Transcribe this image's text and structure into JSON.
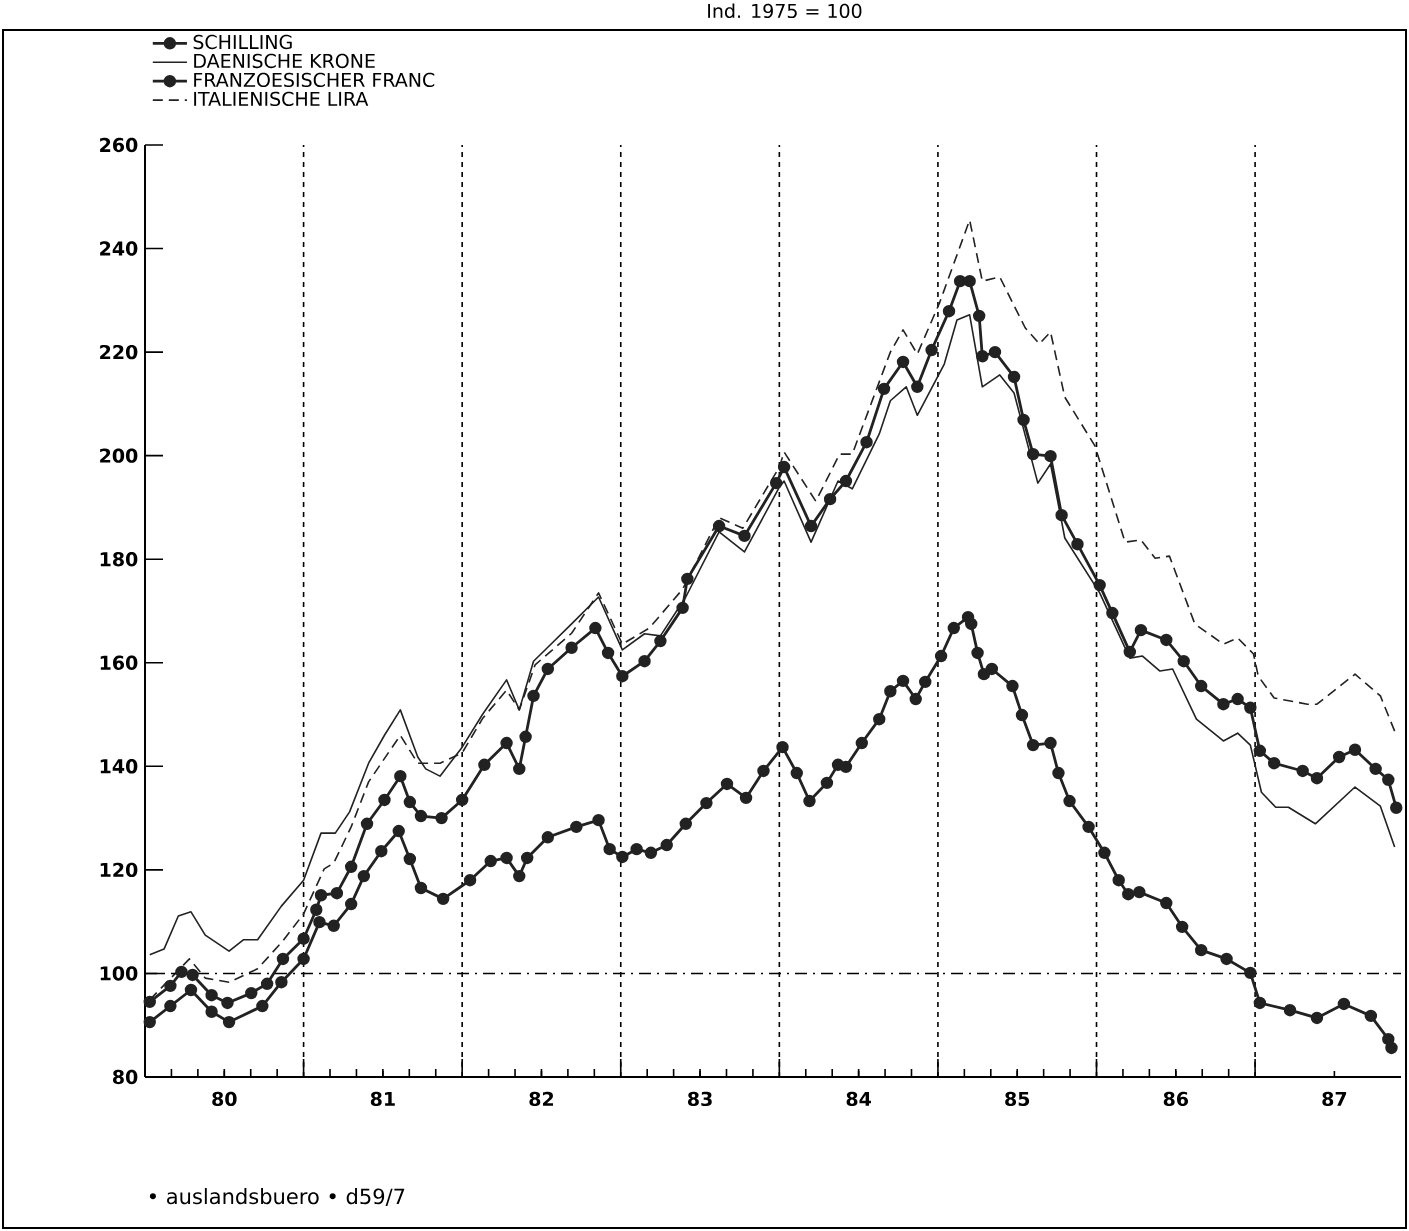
{
  "chart_data": {
    "type": "line",
    "title": "Ind. 1975 = 100",
    "annotations": [
      "• auslandsbuero • d59/7"
    ],
    "xlim": [
      79.5,
      87.42
    ],
    "ylim": [
      80,
      260
    ],
    "xticks": [
      {
        "value": 79.5,
        "label": null
      },
      80,
      {
        "value": 80.5,
        "label": null
      },
      81,
      {
        "value": 81.5,
        "label": null
      },
      82,
      {
        "value": 82.5,
        "label": null
      },
      83,
      {
        "value": 83.5,
        "label": null
      },
      84,
      {
        "value": 84.5,
        "label": null
      },
      85,
      {
        "value": 85.5,
        "label": null
      },
      86,
      {
        "value": 86.5,
        "label": null
      },
      87
    ],
    "yticks": [
      80,
      100,
      120,
      140,
      160,
      180,
      200,
      220,
      240,
      260
    ],
    "grid": "x",
    "legend": "top left",
    "ref_lines": [
      {
        "axis": "y",
        "value": 100,
        "line_style": "dashed"
      }
    ],
    "series": [
      {
        "name": "SCHILLING",
        "color": "#222222",
        "marker": "circle",
        "line_style": "solid",
        "x": [
          79.53,
          79.66,
          79.79,
          79.92,
          80.03,
          80.24,
          80.36,
          80.5,
          80.6,
          80.69,
          80.8,
          80.88,
          80.99,
          81.1,
          81.17,
          81.24,
          81.38,
          81.55,
          81.68,
          81.78,
          81.86,
          81.91,
          82.04,
          82.22,
          82.36,
          82.43,
          82.51,
          82.6,
          82.69,
          82.79,
          82.91,
          83.04,
          83.17,
          83.29,
          83.4,
          83.52,
          83.61,
          83.69,
          83.8,
          83.87,
          83.92,
          84.02,
          84.13,
          84.2,
          84.28,
          84.36,
          84.42,
          84.52,
          84.6,
          84.69,
          84.71,
          84.75,
          84.79,
          84.84,
          84.97,
          85.03,
          85.1,
          85.21,
          85.26,
          85.33,
          85.45,
          85.55,
          85.64,
          85.7,
          85.77,
          85.94,
          86.04,
          86.16,
          86.32,
          86.47,
          86.53,
          86.72,
          86.89,
          87.06,
          87.23,
          87.34,
          87.36
        ],
        "values": [
          90.6,
          93.7,
          96.8,
          92.6,
          90.6,
          93.7,
          98.3,
          102.8,
          109.9,
          109.2,
          113.4,
          118.8,
          123.6,
          127.5,
          122.1,
          116.5,
          114.4,
          118.0,
          121.7,
          122.3,
          118.8,
          122.3,
          126.3,
          128.3,
          129.6,
          124.0,
          122.5,
          124.0,
          123.3,
          124.8,
          128.9,
          132.9,
          136.6,
          133.9,
          139.1,
          143.7,
          138.7,
          133.3,
          136.8,
          140.3,
          139.9,
          144.5,
          149.1,
          154.5,
          156.5,
          153.0,
          156.3,
          161.3,
          166.7,
          168.8,
          167.5,
          161.9,
          157.8,
          158.8,
          155.5,
          149.9,
          144.1,
          144.5,
          138.7,
          133.3,
          128.3,
          123.3,
          118.0,
          115.3,
          115.7,
          113.6,
          109.0,
          104.5,
          102.8,
          100.1,
          94.3,
          92.9,
          91.4,
          94.1,
          91.8,
          87.3,
          85.6
        ]
      },
      {
        "name": "DAENISCHE KRONE",
        "color": "#222222",
        "marker": "none",
        "line_style": "solid",
        "x": [
          79.53,
          79.62,
          79.71,
          79.79,
          79.88,
          80.03,
          80.12,
          80.21,
          80.36,
          80.5,
          80.61,
          80.7,
          80.79,
          80.91,
          81.01,
          81.11,
          81.22,
          81.27,
          81.36,
          81.5,
          81.63,
          81.78,
          81.86,
          81.95,
          82.04,
          82.19,
          82.36,
          82.51,
          82.65,
          82.75,
          82.91,
          83.12,
          83.28,
          83.5,
          83.53,
          83.7,
          83.87,
          83.96,
          84.13,
          84.2,
          84.3,
          84.37,
          84.54,
          84.62,
          84.7,
          84.78,
          84.89,
          84.98,
          85.13,
          85.21,
          85.3,
          85.52,
          85.71,
          85.79,
          85.9,
          85.98,
          86.13,
          86.3,
          86.39,
          86.47,
          86.54,
          86.63,
          86.71,
          86.88,
          87.13,
          87.29,
          87.38
        ],
        "values": [
          103.6,
          104.7,
          111.1,
          111.9,
          107.4,
          104.3,
          106.5,
          106.5,
          113.0,
          118.0,
          127.1,
          127.1,
          131.2,
          140.6,
          146.0,
          150.9,
          141.8,
          139.5,
          138.1,
          143.7,
          150.1,
          156.7,
          150.9,
          160.3,
          163.0,
          167.5,
          172.7,
          162.5,
          165.6,
          165.2,
          172.7,
          185.3,
          181.4,
          193.9,
          195.1,
          183.3,
          195.1,
          193.6,
          204.2,
          210.6,
          213.3,
          207.8,
          217.7,
          226.2,
          227.2,
          213.3,
          215.6,
          212.1,
          194.7,
          198.4,
          184.1,
          173.5,
          160.9,
          161.3,
          158.4,
          158.8,
          149.1,
          144.9,
          146.4,
          144.1,
          135.0,
          132.1,
          132.1,
          128.9,
          136.0,
          132.3,
          124.4
        ]
      },
      {
        "name": "FRANZOESISCHER FRANC",
        "color": "#222222",
        "marker": "circle",
        "line_style": "solid",
        "x": [
          79.53,
          79.66,
          79.73,
          79.8,
          79.92,
          80.02,
          80.17,
          80.27,
          80.37,
          80.5,
          80.58,
          80.61,
          80.71,
          80.8,
          80.9,
          81.01,
          81.11,
          81.17,
          81.24,
          81.37,
          81.5,
          81.64,
          81.78,
          81.86,
          81.9,
          81.95,
          82.04,
          82.19,
          82.34,
          82.42,
          82.51,
          82.65,
          82.75,
          82.89,
          82.92,
          83.12,
          83.28,
          83.48,
          83.53,
          83.7,
          83.82,
          83.92,
          84.05,
          84.16,
          84.28,
          84.37,
          84.46,
          84.57,
          84.64,
          84.7,
          84.76,
          84.78,
          84.86,
          84.98,
          85.04,
          85.1,
          85.21,
          85.28,
          85.38,
          85.52,
          85.6,
          85.71,
          85.78,
          85.94,
          86.05,
          86.16,
          86.3,
          86.39,
          86.47,
          86.53,
          86.62,
          86.8,
          86.89,
          87.03,
          87.13,
          87.26,
          87.34,
          87.39
        ],
        "values": [
          94.5,
          97.6,
          100.3,
          99.7,
          95.8,
          94.3,
          96.2,
          98.0,
          102.8,
          106.7,
          112.3,
          115.1,
          115.5,
          120.6,
          128.9,
          133.5,
          138.1,
          133.1,
          130.4,
          130.0,
          133.5,
          140.3,
          144.5,
          139.5,
          145.7,
          153.6,
          158.8,
          162.9,
          166.7,
          161.9,
          157.4,
          160.3,
          164.2,
          170.6,
          176.2,
          186.4,
          184.5,
          194.7,
          197.8,
          186.4,
          191.6,
          195.1,
          202.6,
          212.9,
          218.1,
          213.3,
          220.4,
          227.9,
          233.7,
          233.7,
          227.0,
          219.2,
          220.0,
          215.2,
          206.9,
          200.3,
          199.9,
          188.5,
          182.9,
          175.0,
          169.6,
          162.1,
          166.3,
          164.4,
          160.3,
          155.5,
          152.0,
          153.0,
          151.3,
          143.0,
          140.6,
          139.1,
          137.7,
          141.8,
          143.2,
          139.5,
          137.4,
          132.0
        ]
      },
      {
        "name": "ITALIENISCHE LIRA",
        "color": "#222222",
        "marker": "none",
        "line_style": "dashed",
        "x": [
          79.53,
          79.78,
          79.88,
          80.03,
          80.21,
          80.37,
          80.5,
          80.63,
          80.69,
          80.8,
          80.91,
          81.11,
          81.22,
          81.36,
          81.5,
          81.63,
          81.78,
          81.86,
          81.96,
          82.19,
          82.36,
          82.51,
          82.68,
          82.89,
          83.12,
          83.27,
          83.5,
          83.53,
          83.73,
          83.88,
          83.96,
          84.2,
          84.28,
          84.37,
          84.51,
          84.7,
          84.78,
          84.89,
          85.05,
          85.14,
          85.21,
          85.3,
          85.49,
          85.68,
          85.78,
          85.87,
          85.96,
          86.12,
          86.3,
          86.39,
          86.49,
          86.52,
          86.62,
          86.83,
          86.89,
          87.13,
          87.29,
          87.38
        ],
        "values": [
          94.9,
          102.8,
          99.1,
          98.3,
          100.9,
          106.3,
          111.5,
          120.2,
          121.3,
          128.3,
          137.0,
          146.0,
          140.6,
          140.6,
          142.6,
          149.3,
          154.7,
          150.9,
          159.6,
          165.7,
          173.5,
          163.6,
          166.7,
          174.2,
          188.0,
          186.0,
          197.8,
          200.7,
          191.2,
          200.3,
          200.3,
          220.0,
          224.3,
          219.6,
          229.5,
          245.5,
          233.7,
          234.5,
          224.7,
          221.6,
          223.9,
          211.3,
          201.9,
          183.3,
          183.7,
          180.2,
          180.6,
          167.5,
          163.6,
          164.8,
          161.7,
          157.4,
          153.2,
          152.0,
          152.0,
          157.8,
          153.6,
          146.8
        ]
      }
    ]
  }
}
